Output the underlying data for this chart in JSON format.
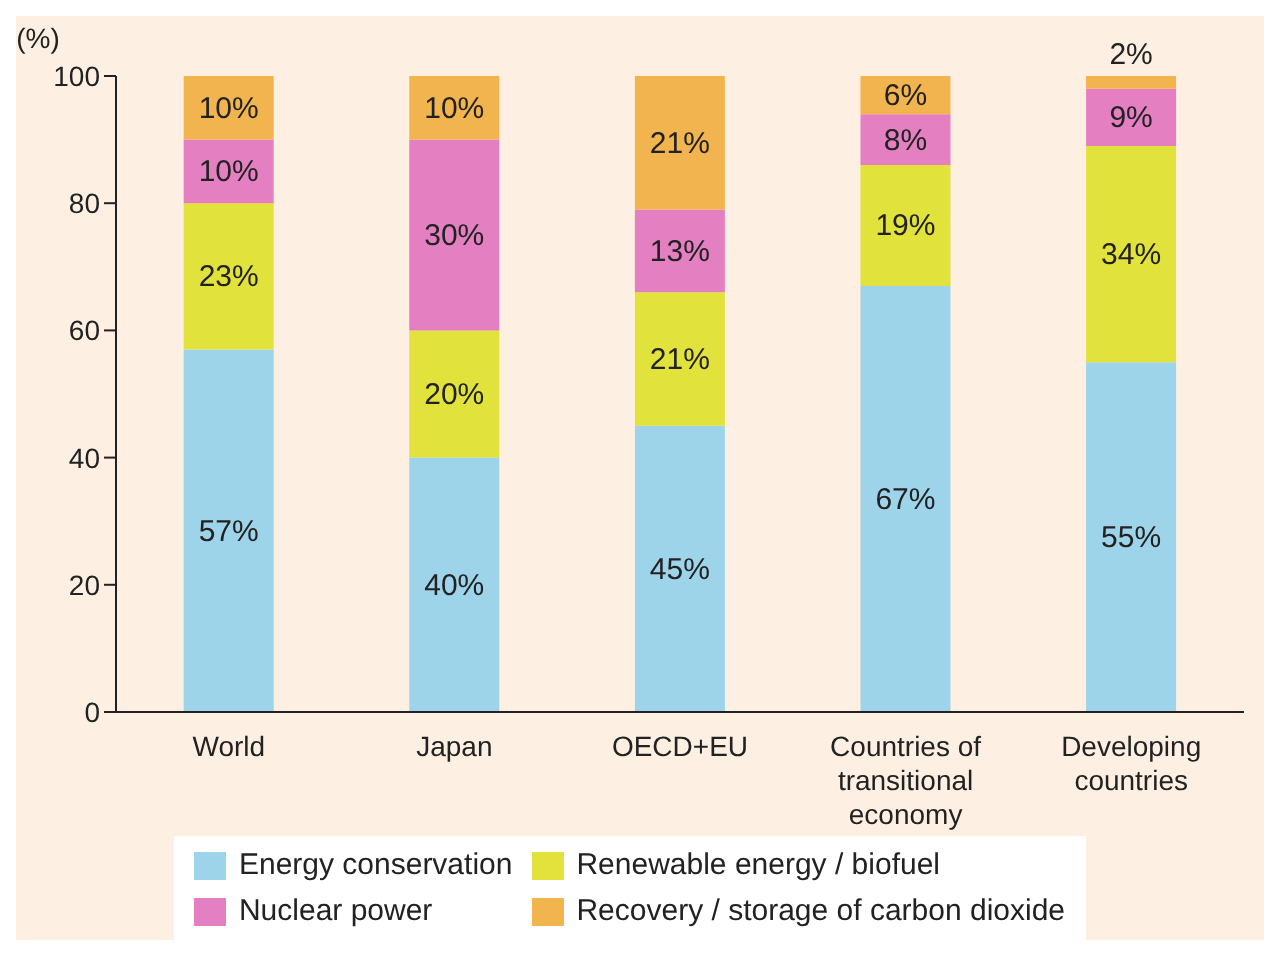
{
  "chart_data": {
    "type": "bar",
    "stacked": true,
    "ylabel": "(%)",
    "categories": [
      "World",
      "Japan",
      "OECD+EU",
      "Countries of transitional economy",
      "Developing countries"
    ],
    "series": [
      {
        "name": "Energy conservation",
        "color": "#9dd4ea",
        "values": [
          57,
          40,
          45,
          67,
          55
        ],
        "value_labels": [
          "57%",
          "40%",
          "45%",
          "67%",
          "55%"
        ]
      },
      {
        "name": "Renewable energy / biofuel",
        "color": "#e2e23c",
        "values": [
          23,
          20,
          21,
          19,
          34
        ],
        "value_labels": [
          "23%",
          "20%",
          "21%",
          "19%",
          "34%"
        ]
      },
      {
        "name": "Nuclear power",
        "color": "#e47fc2",
        "values": [
          10,
          30,
          13,
          8,
          9
        ],
        "value_labels": [
          "10%",
          "30%",
          "13%",
          "8%",
          "9%"
        ]
      },
      {
        "name": "Recovery / storage of carbon dioxide",
        "color": "#f1b44e",
        "values": [
          10,
          10,
          21,
          6,
          2
        ],
        "value_labels": [
          "10%",
          "10%",
          "21%",
          "6%",
          "2%"
        ]
      }
    ],
    "ylim": [
      0,
      100
    ],
    "yticks": [
      0,
      20,
      40,
      60,
      80,
      100
    ],
    "grid": false,
    "legend": "bottom"
  }
}
